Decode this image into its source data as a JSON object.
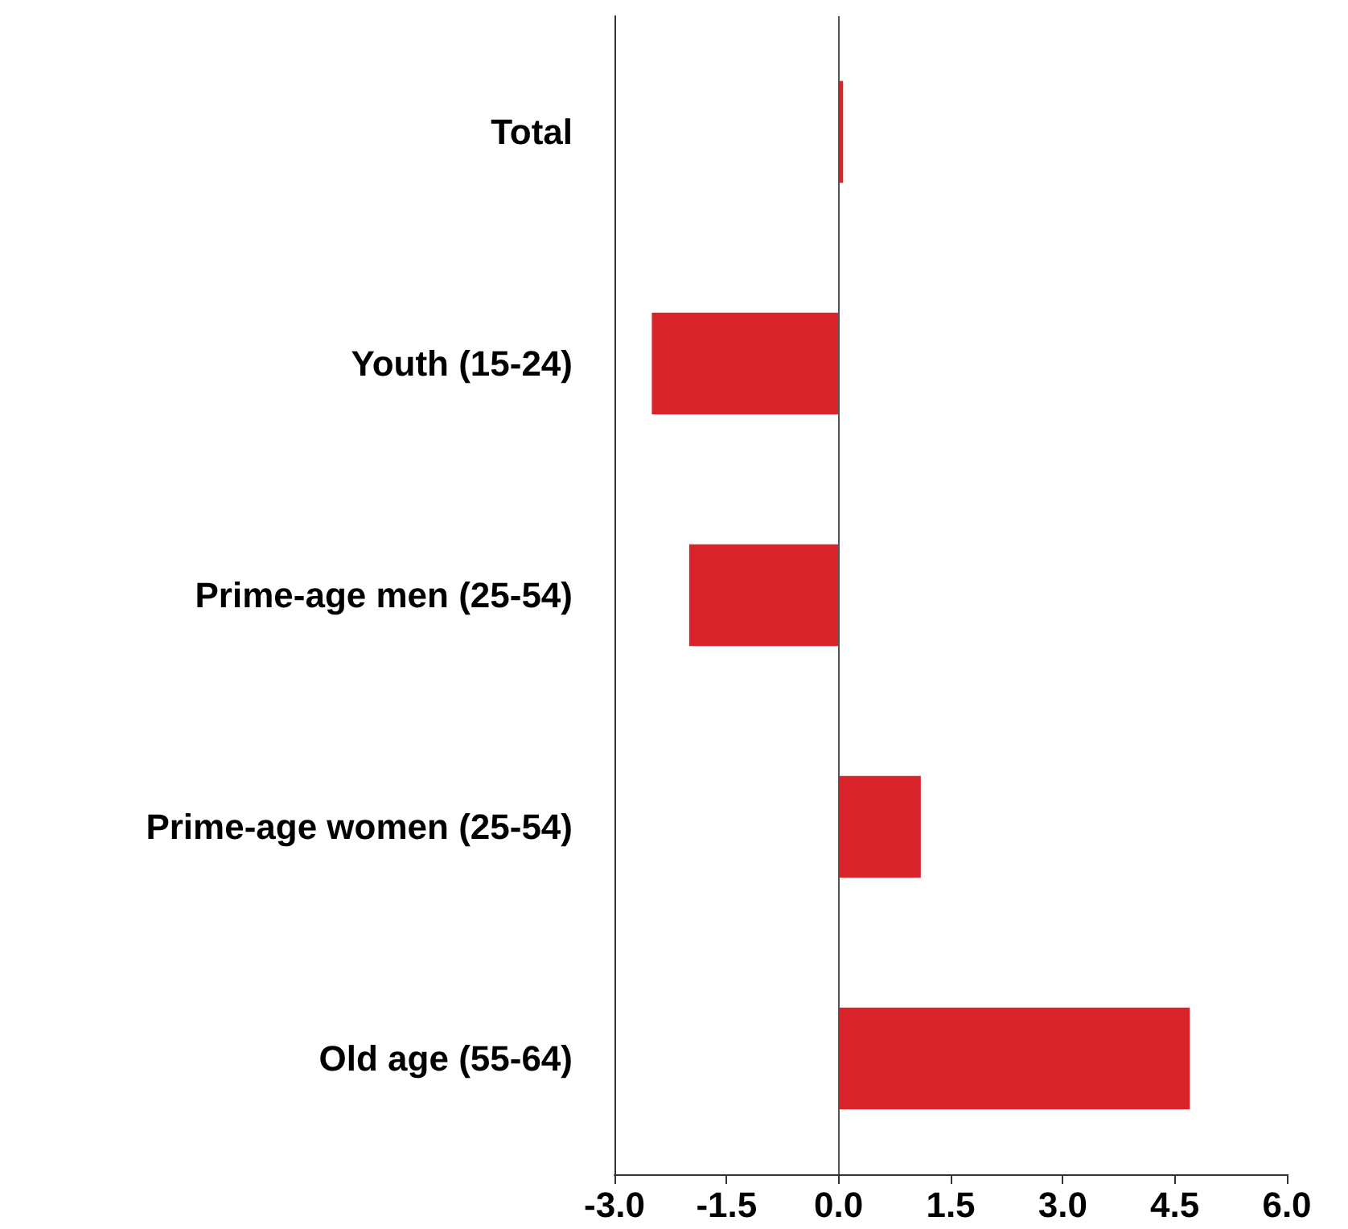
{
  "chart_data": {
    "type": "bar",
    "orientation": "horizontal",
    "categories": [
      "Total",
      "Youth (15-24)",
      "Prime-age men (25-54)",
      "Prime-age women (25-54)",
      "Old age (55-64)"
    ],
    "values": [
      0.06,
      -2.5,
      -2.0,
      1.1,
      4.7
    ],
    "color": "#d8232a",
    "xlim": [
      -3.0,
      6.0
    ],
    "xticks": [
      {
        "value": -3,
        "label": "-3.0"
      },
      {
        "value": -1.5,
        "label": "-1.5"
      },
      {
        "value": 0,
        "label": "0.0"
      },
      {
        "value": 1.5,
        "label": "1.5"
      },
      {
        "value": 3,
        "label": "3.0"
      },
      {
        "value": 4.5,
        "label": "4.5"
      },
      {
        "value": 6,
        "label": "6.0"
      }
    ],
    "ref_lines": [
      {
        "axis": "x",
        "value": 0,
        "color": "#555555"
      }
    ],
    "grid": false
  }
}
